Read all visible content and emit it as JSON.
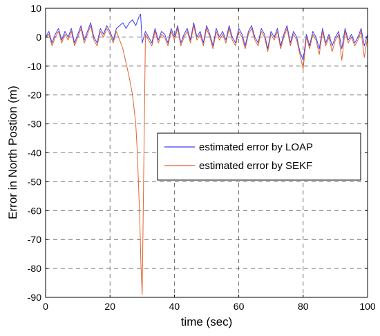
{
  "chart_data": {
    "type": "line",
    "xlabel": "time (sec)",
    "ylabel": "Error in North Postion (m)",
    "xlim": [
      0,
      100
    ],
    "ylim": [
      -90,
      10
    ],
    "xticks": [
      "0",
      "20",
      "40",
      "60",
      "80",
      "100"
    ],
    "yticks": [
      "10",
      "0",
      "-10",
      "-20",
      "-30",
      "-40",
      "-50",
      "-60",
      "-70",
      "-80",
      "-90"
    ],
    "grid": true,
    "legend_position": "right-middle",
    "series": [
      {
        "name": "estimated error by LOAP",
        "color": "#3b3bff",
        "x": [
          0,
          1,
          2,
          3,
          4,
          5,
          6,
          7,
          8,
          9,
          10,
          11,
          12,
          13,
          14,
          15,
          16,
          17,
          18,
          19,
          20,
          21,
          22,
          23,
          24,
          25,
          26,
          27,
          28,
          29,
          29.5,
          30,
          31,
          32,
          33,
          34,
          35,
          36,
          37,
          38,
          39,
          40,
          41,
          42,
          43,
          44,
          45,
          46,
          47,
          48,
          49,
          50,
          51,
          52,
          53,
          54,
          55,
          56,
          57,
          58,
          59,
          60,
          61,
          62,
          63,
          64,
          65,
          66,
          67,
          68,
          69,
          70,
          71,
          72,
          73,
          74,
          75,
          76,
          77,
          78,
          79,
          80,
          81,
          82,
          83,
          84,
          85,
          86,
          87,
          88,
          89,
          90,
          91,
          92,
          93,
          94,
          95,
          96,
          97,
          98,
          99,
          100
        ],
        "y": [
          0,
          2,
          -2,
          1,
          3,
          -1,
          2,
          0,
          3,
          -2,
          1,
          4,
          -1,
          2,
          5,
          0,
          -2,
          3,
          1,
          4,
          2,
          -1,
          3,
          4,
          5,
          3,
          5,
          6,
          4,
          7,
          8,
          -2,
          2,
          0,
          -2,
          3,
          -1,
          2,
          1,
          -2,
          3,
          0,
          4,
          -2,
          1,
          3,
          -1,
          5,
          0,
          2,
          -2,
          4,
          1,
          -3,
          3,
          0,
          2,
          -1,
          4,
          0,
          -2,
          3,
          1,
          -3,
          2,
          4,
          0,
          -2,
          3,
          1,
          -4,
          2,
          0,
          3,
          -3,
          1,
          4,
          -2,
          2,
          0,
          -5,
          -8,
          1,
          -3,
          2,
          0,
          -4,
          3,
          -2,
          1,
          -3,
          0,
          2,
          -4,
          3,
          -1,
          1,
          -2,
          0,
          3,
          -3,
          1
        ]
      },
      {
        "name": "estimated error by  SEKF",
        "color": "#e3622b",
        "x": [
          0,
          1,
          2,
          3,
          4,
          5,
          6,
          7,
          8,
          9,
          10,
          11,
          12,
          13,
          14,
          15,
          16,
          17,
          18,
          19,
          20,
          21,
          22,
          23,
          24,
          25,
          26,
          27,
          28,
          28.5,
          29,
          29.3,
          29.6,
          30,
          31,
          32,
          33,
          34,
          35,
          36,
          37,
          38,
          39,
          40,
          41,
          42,
          43,
          44,
          45,
          46,
          47,
          48,
          49,
          50,
          51,
          52,
          53,
          54,
          55,
          56,
          57,
          58,
          59,
          60,
          61,
          62,
          63,
          64,
          65,
          66,
          67,
          68,
          69,
          70,
          71,
          72,
          73,
          74,
          75,
          76,
          77,
          78,
          79,
          80,
          81,
          82,
          83,
          84,
          85,
          86,
          87,
          88,
          89,
          90,
          91,
          92,
          93,
          94,
          95,
          96,
          97,
          98,
          99,
          100
        ],
        "y": [
          0,
          1,
          -3,
          0,
          2,
          -2,
          1,
          -1,
          2,
          -3,
          0,
          3,
          -2,
          1,
          4,
          -1,
          -3,
          2,
          0,
          3,
          1,
          -2,
          2,
          -1,
          -4,
          -9,
          -14,
          -20,
          -30,
          -40,
          -55,
          -65,
          -78,
          -89,
          1,
          -1,
          -3,
          2,
          -2,
          1,
          0,
          -3,
          2,
          -1,
          3,
          -3,
          0,
          2,
          -2,
          4,
          -1,
          1,
          -3,
          3,
          0,
          -4,
          2,
          -1,
          1,
          -2,
          3,
          -1,
          -3,
          2,
          0,
          -4,
          1,
          3,
          -1,
          -3,
          2,
          0,
          -5,
          1,
          -1,
          2,
          -4,
          0,
          3,
          -3,
          1,
          -1,
          -6,
          -11,
          0,
          -4,
          1,
          -1,
          -6,
          2,
          -3,
          0,
          -5,
          -1,
          1,
          -8,
          2,
          -2,
          0,
          -3,
          -1,
          2,
          -7,
          0
        ]
      }
    ]
  }
}
